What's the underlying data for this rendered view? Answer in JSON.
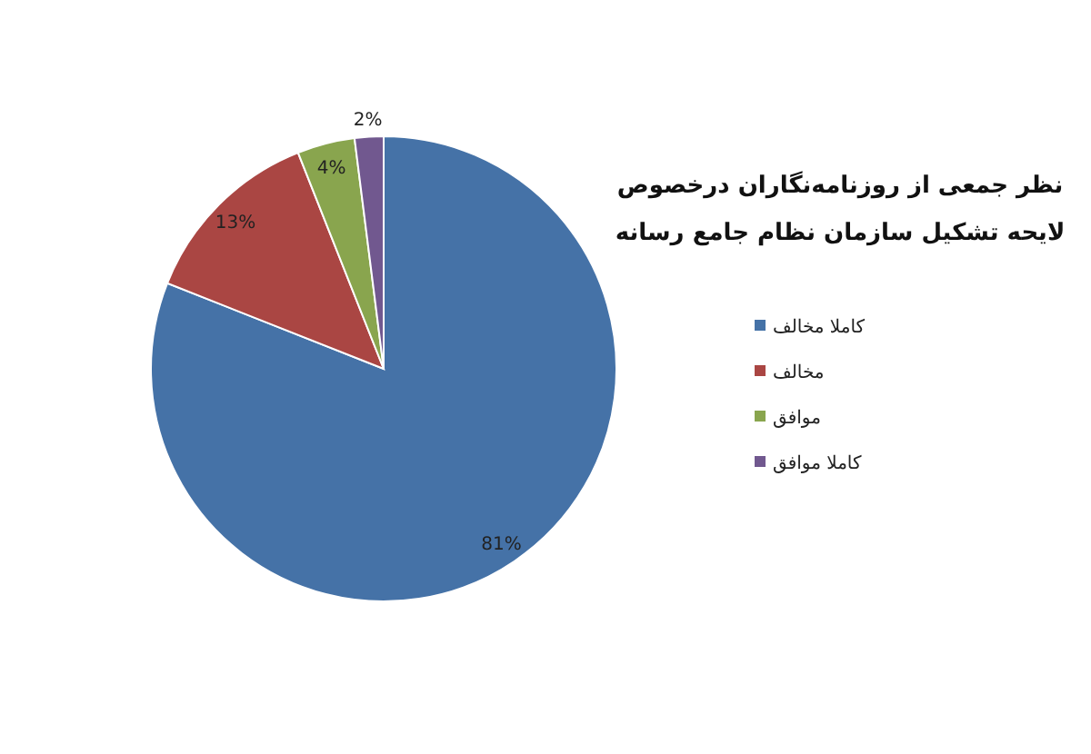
{
  "chart_data": {
    "type": "pie",
    "title": "نظر جمعی از روزنامه‌نگاران درخصوص\nلایحه تشکیل سازمان نظام جامع رسانه",
    "categories": [
      "کاملا مخالف",
      "مخالف",
      "موافق",
      "کاملا موافق"
    ],
    "values": [
      81,
      13,
      4,
      2
    ],
    "colors": [
      "#4572a7",
      "#aa4643",
      "#89a54e",
      "#71588f"
    ],
    "value_labels": [
      "81%",
      "13%",
      "4%",
      "2%"
    ],
    "legend": "right"
  }
}
